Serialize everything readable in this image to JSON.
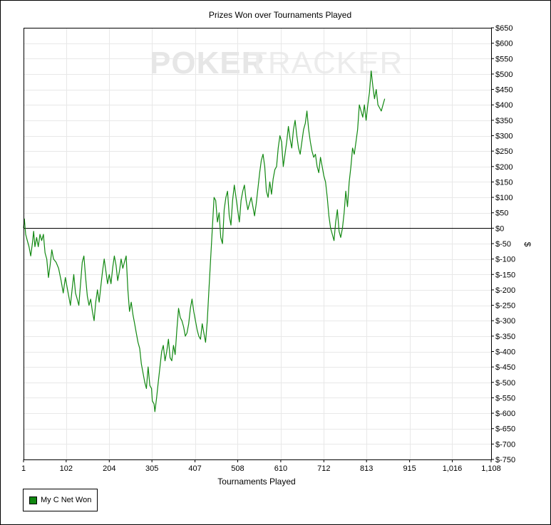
{
  "chart_data": {
    "type": "line",
    "title": "Prizes Won over Tournaments Played",
    "xlabel": "Tournaments Played",
    "ylabel": "$",
    "xlim": [
      1,
      1108
    ],
    "ylim": [
      -750,
      650
    ],
    "x_ticks": [
      1,
      102,
      204,
      305,
      407,
      508,
      610,
      712,
      813,
      915,
      1016,
      1108
    ],
    "x_tick_labels": [
      "1",
      "102",
      "204",
      "305",
      "407",
      "508",
      "610",
      "712",
      "813",
      "915",
      "1,016",
      "1,108"
    ],
    "y_ticks": [
      650,
      600,
      550,
      500,
      450,
      400,
      350,
      300,
      250,
      200,
      150,
      100,
      50,
      0,
      -50,
      -100,
      -150,
      -200,
      -250,
      -300,
      -350,
      -400,
      -450,
      -500,
      -550,
      -600,
      -650,
      -700,
      -750
    ],
    "y_tick_labels": [
      "$650",
      "$600",
      "$550",
      "$500",
      "$450",
      "$400",
      "$350",
      "$300",
      "$250",
      "$200",
      "$150",
      "$100",
      "$50",
      "$0",
      "$-50",
      "$-100",
      "$-150",
      "$-200",
      "$-250",
      "$-300",
      "$-350",
      "$-400",
      "$-450",
      "$-500",
      "$-550",
      "$-600",
      "$-650",
      "$-700",
      "$-750"
    ],
    "grid": true,
    "legend_position": "bottom-left",
    "series": [
      {
        "name": "My C Net Won",
        "color": "#118811",
        "points": [
          [
            1,
            0
          ],
          [
            3,
            30
          ],
          [
            6,
            -20
          ],
          [
            10,
            -40
          ],
          [
            14,
            -60
          ],
          [
            18,
            -90
          ],
          [
            22,
            -50
          ],
          [
            25,
            -10
          ],
          [
            28,
            -60
          ],
          [
            32,
            -30
          ],
          [
            36,
            -60
          ],
          [
            40,
            -20
          ],
          [
            44,
            -40
          ],
          [
            48,
            -20
          ],
          [
            52,
            -80
          ],
          [
            56,
            -100
          ],
          [
            60,
            -160
          ],
          [
            64,
            -120
          ],
          [
            68,
            -70
          ],
          [
            72,
            -100
          ],
          [
            78,
            -110
          ],
          [
            84,
            -130
          ],
          [
            90,
            -170
          ],
          [
            95,
            -210
          ],
          [
            100,
            -160
          ],
          [
            104,
            -190
          ],
          [
            108,
            -220
          ],
          [
            112,
            -250
          ],
          [
            116,
            -200
          ],
          [
            120,
            -150
          ],
          [
            124,
            -210
          ],
          [
            128,
            -230
          ],
          [
            132,
            -250
          ],
          [
            136,
            -180
          ],
          [
            140,
            -110
          ],
          [
            144,
            -90
          ],
          [
            148,
            -160
          ],
          [
            152,
            -220
          ],
          [
            156,
            -250
          ],
          [
            160,
            -230
          ],
          [
            164,
            -270
          ],
          [
            168,
            -300
          ],
          [
            172,
            -240
          ],
          [
            176,
            -200
          ],
          [
            180,
            -240
          ],
          [
            184,
            -190
          ],
          [
            188,
            -140
          ],
          [
            192,
            -100
          ],
          [
            196,
            -140
          ],
          [
            200,
            -180
          ],
          [
            204,
            -150
          ],
          [
            208,
            -180
          ],
          [
            212,
            -130
          ],
          [
            216,
            -90
          ],
          [
            220,
            -120
          ],
          [
            224,
            -170
          ],
          [
            228,
            -140
          ],
          [
            232,
            -100
          ],
          [
            236,
            -130
          ],
          [
            240,
            -110
          ],
          [
            244,
            -90
          ],
          [
            248,
            -200
          ],
          [
            252,
            -270
          ],
          [
            256,
            -240
          ],
          [
            260,
            -280
          ],
          [
            264,
            -310
          ],
          [
            268,
            -340
          ],
          [
            272,
            -370
          ],
          [
            276,
            -390
          ],
          [
            280,
            -440
          ],
          [
            284,
            -470
          ],
          [
            288,
            -500
          ],
          [
            292,
            -520
          ],
          [
            296,
            -450
          ],
          [
            300,
            -510
          ],
          [
            304,
            -520
          ],
          [
            306,
            -560
          ],
          [
            310,
            -570
          ],
          [
            312,
            -595
          ],
          [
            316,
            -550
          ],
          [
            320,
            -500
          ],
          [
            324,
            -450
          ],
          [
            328,
            -400
          ],
          [
            332,
            -380
          ],
          [
            336,
            -430
          ],
          [
            340,
            -400
          ],
          [
            344,
            -360
          ],
          [
            348,
            -420
          ],
          [
            352,
            -430
          ],
          [
            356,
            -380
          ],
          [
            360,
            -410
          ],
          [
            364,
            -330
          ],
          [
            368,
            -260
          ],
          [
            372,
            -290
          ],
          [
            376,
            -300
          ],
          [
            380,
            -320
          ],
          [
            384,
            -350
          ],
          [
            388,
            -340
          ],
          [
            392,
            -310
          ],
          [
            396,
            -260
          ],
          [
            400,
            -230
          ],
          [
            404,
            -270
          ],
          [
            408,
            -300
          ],
          [
            412,
            -330
          ],
          [
            416,
            -350
          ],
          [
            420,
            -360
          ],
          [
            424,
            -310
          ],
          [
            428,
            -340
          ],
          [
            432,
            -370
          ],
          [
            436,
            -300
          ],
          [
            440,
            -200
          ],
          [
            444,
            -100
          ],
          [
            448,
            0
          ],
          [
            452,
            100
          ],
          [
            456,
            90
          ],
          [
            460,
            20
          ],
          [
            464,
            50
          ],
          [
            468,
            -30
          ],
          [
            472,
            -50
          ],
          [
            476,
            60
          ],
          [
            480,
            100
          ],
          [
            484,
            120
          ],
          [
            488,
            40
          ],
          [
            492,
            10
          ],
          [
            496,
            90
          ],
          [
            500,
            140
          ],
          [
            504,
            100
          ],
          [
            508,
            60
          ],
          [
            512,
            20
          ],
          [
            516,
            90
          ],
          [
            520,
            120
          ],
          [
            524,
            140
          ],
          [
            528,
            90
          ],
          [
            532,
            60
          ],
          [
            536,
            80
          ],
          [
            540,
            100
          ],
          [
            544,
            70
          ],
          [
            548,
            40
          ],
          [
            552,
            80
          ],
          [
            556,
            130
          ],
          [
            560,
            180
          ],
          [
            564,
            220
          ],
          [
            568,
            240
          ],
          [
            572,
            200
          ],
          [
            576,
            120
          ],
          [
            580,
            100
          ],
          [
            584,
            150
          ],
          [
            588,
            110
          ],
          [
            592,
            160
          ],
          [
            596,
            190
          ],
          [
            600,
            200
          ],
          [
            604,
            260
          ],
          [
            608,
            300
          ],
          [
            612,
            280
          ],
          [
            616,
            200
          ],
          [
            620,
            240
          ],
          [
            624,
            280
          ],
          [
            628,
            330
          ],
          [
            632,
            290
          ],
          [
            636,
            260
          ],
          [
            640,
            320
          ],
          [
            644,
            350
          ],
          [
            648,
            300
          ],
          [
            652,
            260
          ],
          [
            656,
            240
          ],
          [
            660,
            280
          ],
          [
            664,
            320
          ],
          [
            668,
            340
          ],
          [
            672,
            380
          ],
          [
            676,
            320
          ],
          [
            680,
            280
          ],
          [
            684,
            250
          ],
          [
            688,
            230
          ],
          [
            692,
            240
          ],
          [
            696,
            200
          ],
          [
            700,
            180
          ],
          [
            704,
            230
          ],
          [
            708,
            200
          ],
          [
            712,
            170
          ],
          [
            716,
            150
          ],
          [
            720,
            100
          ],
          [
            724,
            40
          ],
          [
            728,
            0
          ],
          [
            732,
            -20
          ],
          [
            736,
            -40
          ],
          [
            740,
            20
          ],
          [
            744,
            60
          ],
          [
            748,
            -10
          ],
          [
            752,
            -30
          ],
          [
            756,
            0
          ],
          [
            760,
            50
          ],
          [
            764,
            120
          ],
          [
            768,
            70
          ],
          [
            772,
            150
          ],
          [
            776,
            200
          ],
          [
            780,
            260
          ],
          [
            784,
            240
          ],
          [
            788,
            280
          ],
          [
            792,
            320
          ],
          [
            796,
            400
          ],
          [
            800,
            380
          ],
          [
            804,
            360
          ],
          [
            808,
            400
          ],
          [
            812,
            350
          ],
          [
            816,
            400
          ],
          [
            820,
            440
          ],
          [
            824,
            510
          ],
          [
            828,
            460
          ],
          [
            832,
            420
          ],
          [
            836,
            450
          ],
          [
            840,
            400
          ],
          [
            844,
            390
          ],
          [
            848,
            380
          ],
          [
            852,
            400
          ],
          [
            856,
            420
          ]
        ]
      }
    ]
  },
  "watermark": {
    "bold_part": "POKER",
    "light_part": "TRACKER"
  }
}
